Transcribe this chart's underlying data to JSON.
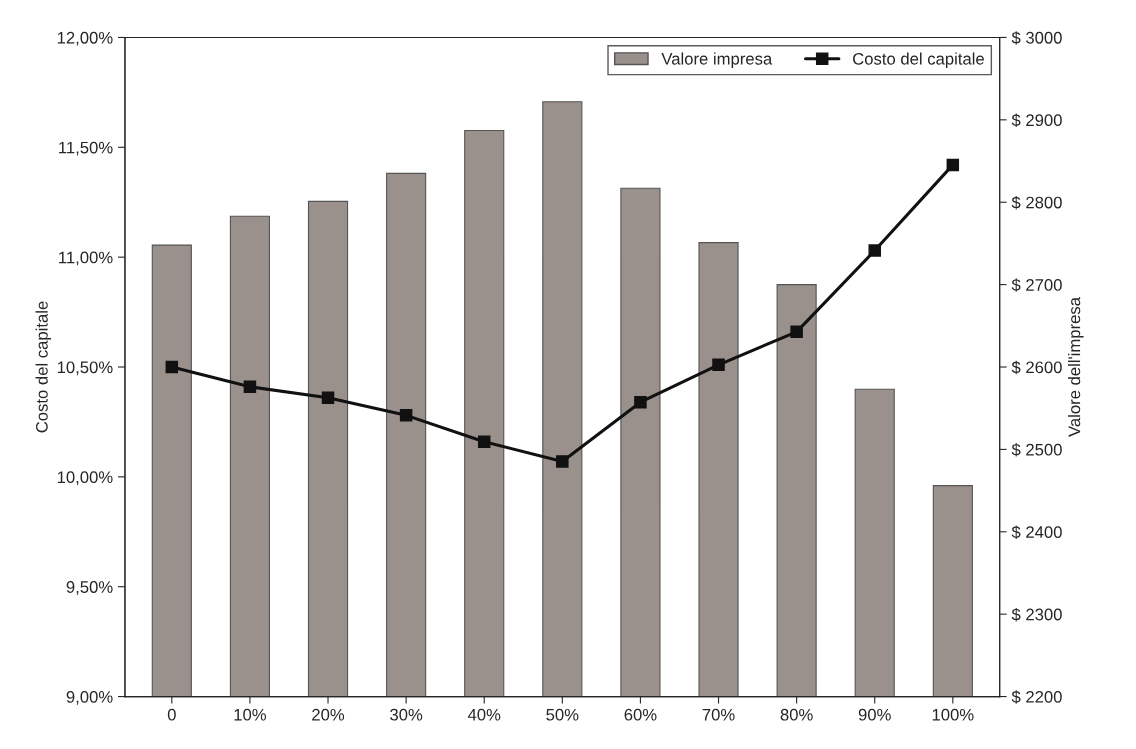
{
  "chart_data": {
    "type": "bar",
    "categories": [
      "0",
      "10%",
      "20%",
      "30%",
      "40%",
      "50%",
      "60%",
      "70%",
      "80%",
      "90%",
      "100%"
    ],
    "series": [
      {
        "name": "Valore impresa",
        "axis": "y2",
        "color": "#9a918c",
        "values": [
          2748,
          2783,
          2801,
          2835,
          2887,
          2922,
          2817,
          2751,
          2700,
          2573,
          2456
        ]
      },
      {
        "name": "Costo del capitale",
        "type": "line",
        "color": "#111111",
        "marker": "square",
        "values": [
          10.5,
          10.41,
          10.36,
          10.28,
          10.16,
          10.07,
          10.34,
          10.51,
          10.66,
          11.03,
          11.42
        ]
      }
    ],
    "ylabel": "Costo del capitale",
    "y2label": "Valore dell'impresa",
    "ylim": [
      9,
      12
    ],
    "yticks": [
      {
        "value": 9,
        "label": "9,00%"
      },
      {
        "value": 9.5,
        "label": "9,50%"
      },
      {
        "value": 10,
        "label": "10,00%"
      },
      {
        "value": 10.5,
        "label": "10,50%"
      },
      {
        "value": 11,
        "label": "11,00%"
      },
      {
        "value": 11.5,
        "label": "11,50%"
      },
      {
        "value": 12,
        "label": "12,00%"
      }
    ],
    "y2lim": [
      2200,
      3000
    ],
    "y2ticks": [
      {
        "value": 2200,
        "label": "$ 2200"
      },
      {
        "value": 2300,
        "label": "$ 2300"
      },
      {
        "value": 2400,
        "label": "$ 2400"
      },
      {
        "value": 2500,
        "label": "$ 2500"
      },
      {
        "value": 2600,
        "label": "$ 2600"
      },
      {
        "value": 2700,
        "label": "$ 2700"
      },
      {
        "value": 2800,
        "label": "$ 2800"
      },
      {
        "value": 2900,
        "label": "$ 2900"
      },
      {
        "value": 3000,
        "label": "$ 3000"
      }
    ],
    "legend": "top right",
    "grid": false
  }
}
